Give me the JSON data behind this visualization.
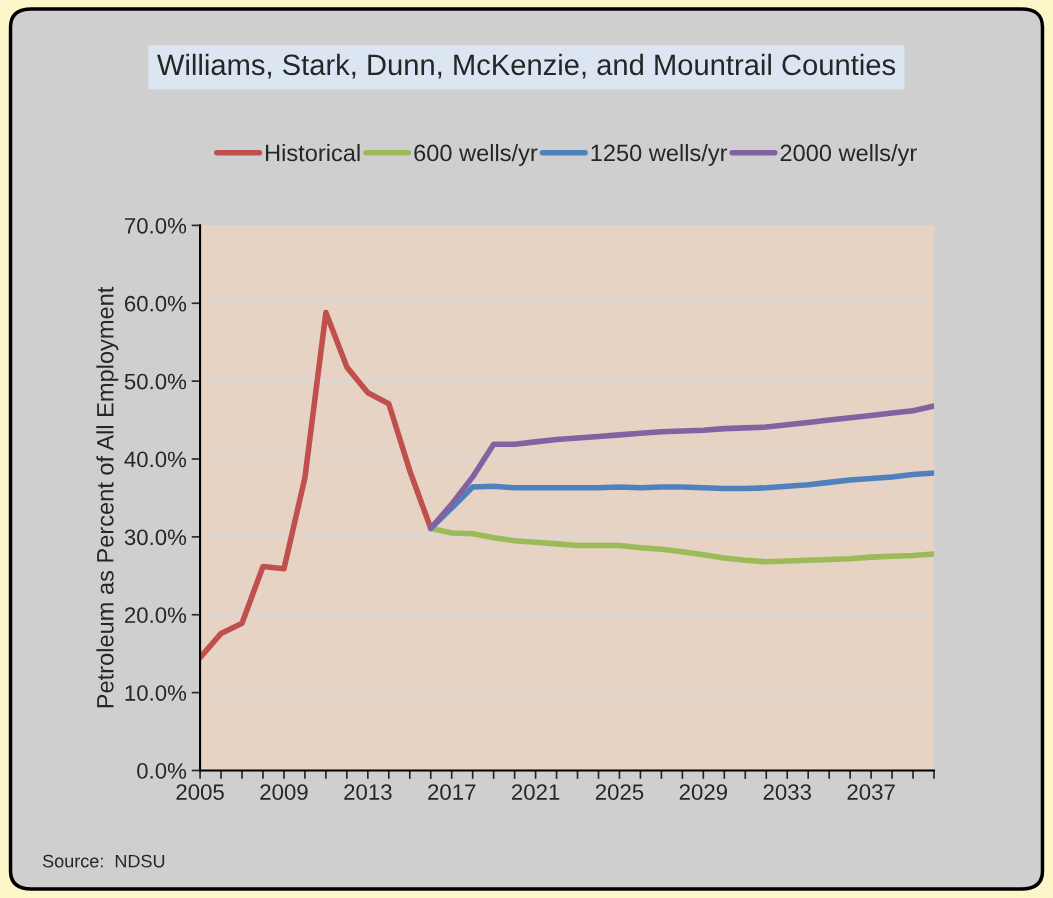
{
  "chart_data": {
    "type": "line",
    "title": "Williams, Stark, Dunn, McKenzie, and Mountrail Counties",
    "ylabel": "Petroleum as Percent of All Employment",
    "annotations": [
      "Source:  NDSU"
    ],
    "series": [
      {
        "name": "Historical",
        "color": "#c0504d",
        "x": [
          2005,
          2006,
          2007,
          2008,
          2009,
          2010,
          2011,
          2012,
          2013,
          2014,
          2015,
          2016
        ],
        "values": [
          14.5,
          17.6,
          18.9,
          26.2,
          25.9,
          37.6,
          58.8,
          51.8,
          48.5,
          47.1,
          38.5,
          31.1
        ]
      },
      {
        "name": "600 wells/yr",
        "color": "#9bbb59",
        "x": [
          2016,
          2017,
          2018,
          2019,
          2020,
          2021,
          2022,
          2023,
          2024,
          2025,
          2026,
          2027,
          2028,
          2029,
          2030,
          2031,
          2032,
          2033,
          2034,
          2035,
          2036,
          2037,
          2038,
          2039,
          2040
        ],
        "values": [
          31.1,
          30.5,
          30.4,
          29.9,
          29.5,
          29.3,
          29.1,
          28.9,
          28.9,
          28.9,
          28.6,
          28.4,
          28.1,
          27.7,
          27.3,
          27.0,
          26.8,
          26.9,
          27.0,
          27.1,
          27.2,
          27.4,
          27.5,
          27.6,
          27.8
        ]
      },
      {
        "name": "1250 wells/yr",
        "color": "#4f81bd",
        "x": [
          2016,
          2017,
          2018,
          2019,
          2020,
          2021,
          2022,
          2023,
          2024,
          2025,
          2026,
          2027,
          2028,
          2029,
          2030,
          2031,
          2032,
          2033,
          2034,
          2035,
          2036,
          2037,
          2038,
          2039,
          2040
        ],
        "values": [
          31.1,
          33.7,
          36.4,
          36.5,
          36.3,
          36.3,
          36.3,
          36.3,
          36.3,
          36.4,
          36.3,
          36.4,
          36.4,
          36.3,
          36.2,
          36.2,
          36.3,
          36.5,
          36.7,
          37.0,
          37.3,
          37.5,
          37.7,
          38.0,
          38.2
        ]
      },
      {
        "name": "2000 wells/yr",
        "color": "#8064a2",
        "x": [
          2016,
          2017,
          2018,
          2019,
          2020,
          2021,
          2022,
          2023,
          2024,
          2025,
          2026,
          2027,
          2028,
          2029,
          2030,
          2031,
          2032,
          2033,
          2034,
          2035,
          2036,
          2037,
          2038,
          2039,
          2040
        ],
        "values": [
          31.1,
          34.2,
          37.7,
          41.9,
          41.9,
          42.2,
          42.5,
          42.7,
          42.9,
          43.1,
          43.3,
          43.5,
          43.6,
          43.7,
          43.9,
          44.0,
          44.1,
          44.4,
          44.7,
          45.0,
          45.3,
          45.6,
          45.9,
          46.2,
          46.8
        ]
      }
    ],
    "xlim": [
      2005,
      2040
    ],
    "xticks": [
      2005,
      {
        "value": 2006,
        "label": null
      },
      {
        "value": 2007,
        "label": null
      },
      {
        "value": 2008,
        "label": null
      },
      2009,
      {
        "value": 2010,
        "label": null
      },
      {
        "value": 2011,
        "label": null
      },
      {
        "value": 2012,
        "label": null
      },
      2013,
      {
        "value": 2014,
        "label": null
      },
      {
        "value": 2015,
        "label": null
      },
      {
        "value": 2016,
        "label": null
      },
      2017,
      {
        "value": 2018,
        "label": null
      },
      {
        "value": 2019,
        "label": null
      },
      {
        "value": 2020,
        "label": null
      },
      2021,
      {
        "value": 2022,
        "label": null
      },
      {
        "value": 2023,
        "label": null
      },
      {
        "value": 2024,
        "label": null
      },
      2025,
      {
        "value": 2026,
        "label": null
      },
      {
        "value": 2027,
        "label": null
      },
      {
        "value": 2028,
        "label": null
      },
      2029,
      {
        "value": 2030,
        "label": null
      },
      {
        "value": 2031,
        "label": null
      },
      {
        "value": 2032,
        "label": null
      },
      2033,
      {
        "value": 2034,
        "label": null
      },
      {
        "value": 2035,
        "label": null
      },
      {
        "value": 2036,
        "label": null
      },
      2037,
      {
        "value": 2038,
        "label": null
      },
      {
        "value": 2039,
        "label": null
      },
      {
        "value": 2040,
        "label": null
      }
    ],
    "ylim": [
      0,
      70
    ],
    "yticks": [
      {
        "value": 0,
        "label": "0.0%"
      },
      {
        "value": 10,
        "label": "10.0%"
      },
      {
        "value": 20,
        "label": "20.0%"
      },
      {
        "value": 30,
        "label": "30.0%"
      },
      {
        "value": 40,
        "label": "40.0%"
      },
      {
        "value": 50,
        "label": "50.0%"
      },
      {
        "value": 60,
        "label": "60.0%"
      },
      {
        "value": 70,
        "label": "70.0%"
      }
    ],
    "grid": "y",
    "legend": "top",
    "line_style": "solid",
    "marker": "none"
  }
}
